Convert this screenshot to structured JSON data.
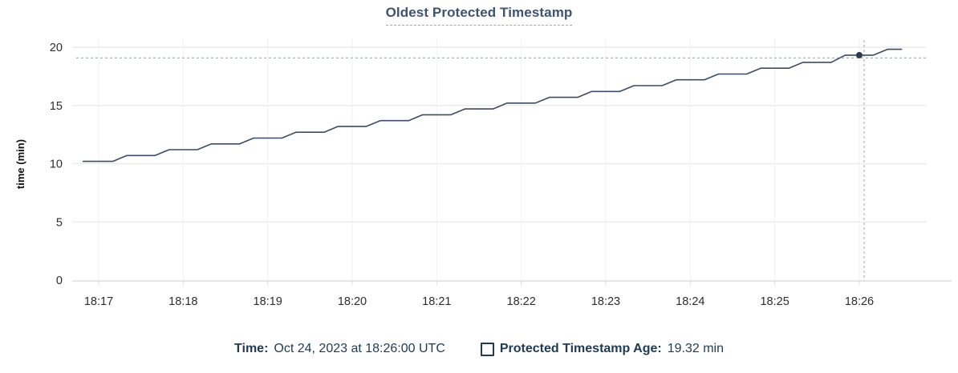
{
  "chart_data": {
    "type": "line",
    "title": "Oldest Protected Timestamp",
    "xlabel": "",
    "ylabel": "time (min)",
    "x_ticks": [
      "18:17",
      "18:18",
      "18:19",
      "18:20",
      "18:21",
      "18:22",
      "18:23",
      "18:24",
      "18:25",
      "18:26"
    ],
    "y_ticks": [
      0,
      5,
      10,
      15,
      20
    ],
    "ylim": [
      0,
      20
    ],
    "x_range": [
      "18:16:49",
      "18:26:30"
    ],
    "grid": "on",
    "legend_position": "bottom",
    "series": [
      {
        "name": "Protected Timestamp Age",
        "unit": "min",
        "x_offsets_seconds_after_18_17_00": [
          -11,
          10,
          20,
          40,
          50,
          70,
          80,
          100,
          110,
          130,
          140,
          160,
          170,
          190,
          200,
          220,
          230,
          250,
          260,
          280,
          290,
          310,
          320,
          340,
          350,
          370,
          380,
          400,
          410,
          430,
          440,
          460,
          470,
          490,
          500,
          520,
          530,
          550,
          560,
          570
        ],
        "values": [
          10.2,
          10.2,
          10.7,
          10.7,
          11.2,
          11.2,
          11.7,
          11.7,
          12.2,
          12.2,
          12.7,
          12.7,
          13.2,
          13.2,
          13.7,
          13.7,
          14.2,
          14.2,
          14.7,
          14.7,
          15.2,
          15.2,
          15.7,
          15.7,
          16.2,
          16.2,
          16.7,
          16.7,
          17.2,
          17.2,
          17.7,
          17.7,
          18.2,
          18.2,
          18.7,
          18.7,
          19.32,
          19.32,
          19.82,
          19.82
        ]
      }
    ],
    "hover_point": {
      "time": "18:26:00",
      "value_min": 19.32
    }
  },
  "footer": {
    "time_label": "Time:",
    "time_value": "Oct 24, 2023 at 18:26:00 UTC",
    "legend_label": "Protected Timestamp Age:",
    "legend_value": "19.32 min"
  },
  "colors": {
    "line": "#3d4c66",
    "dot": "#2b3b54",
    "crosshair": "#a5b5c2",
    "title_text": "#3f5272",
    "title_underline": "#9aa8c0",
    "footer_text": "#1e3a56",
    "grid_horizontal": "#ececec",
    "grid_vertical": "#f1f1f1",
    "axis_line": "#d6d6d6",
    "tick_mark": "#e0e0e0",
    "tick_text": "#2d2d2d",
    "axis_title_text": "#111111"
  }
}
